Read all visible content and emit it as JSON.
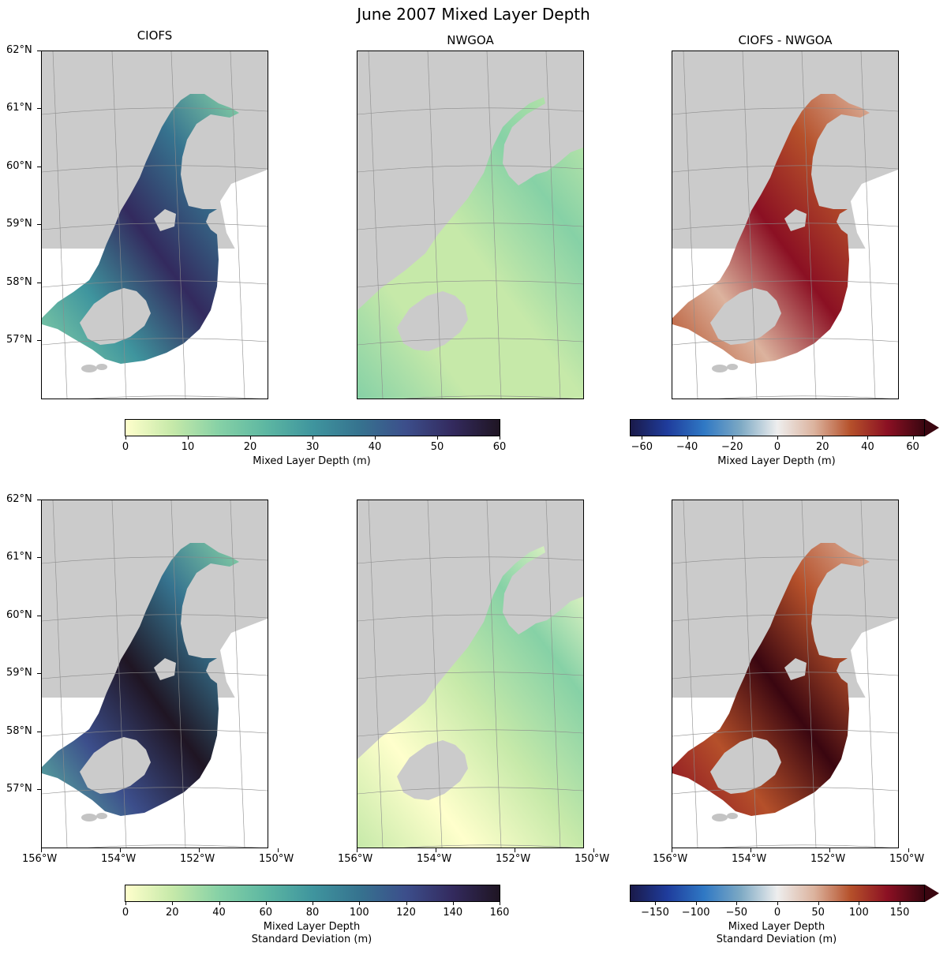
{
  "title": "June 2007 Mixed Layer Depth",
  "column_titles": [
    "CIOFS",
    "NWGOA",
    "CIOFS - NWGOA"
  ],
  "lat_labels": [
    "62°N",
    "61°N",
    "60°N",
    "59°N",
    "58°N",
    "57°N"
  ],
  "lon_labels": [
    "156°W",
    "154°W",
    "152°W",
    "150°W"
  ],
  "colormaps": {
    "sequential": [
      "#ffffcc",
      "#c6e9a9",
      "#86d1a6",
      "#5db7a2",
      "#3f959e",
      "#36738f",
      "#3c4e8b",
      "#332a5e",
      "#1f1523"
    ],
    "diverging": [
      "#1a1a4a",
      "#1f3c9c",
      "#2f78c4",
      "#7da9c4",
      "#eeeeee",
      "#dcb39e",
      "#b5502a",
      "#8b1023",
      "#3a0610"
    ]
  },
  "chart_data": [
    {
      "type": "heatmap",
      "row": "mean",
      "colorbars": [
        {
          "label": "Mixed Layer Depth (m)",
          "colormap": "sequential",
          "range": [
            0,
            60
          ],
          "ticks": [
            "0",
            "10",
            "20",
            "30",
            "40",
            "50",
            "60"
          ],
          "extend": "neither"
        },
        {
          "label": "Mixed Layer Depth (m)",
          "colormap": "diverging",
          "range": [
            -65,
            65
          ],
          "ticks": [
            "−60",
            "−40",
            "−20",
            "0",
            "20",
            "40",
            "60"
          ],
          "tick_values": [
            -60,
            -40,
            -20,
            0,
            20,
            40,
            60
          ],
          "extend": "max"
        }
      ]
    },
    {
      "type": "heatmap",
      "row": "standard deviation",
      "colorbars": [
        {
          "label": "Mixed Layer Depth\nStandard Deviation (m)",
          "colormap": "sequential",
          "range": [
            0,
            160
          ],
          "ticks": [
            "0",
            "20",
            "40",
            "60",
            "80",
            "100",
            "120",
            "140",
            "160"
          ],
          "extend": "neither"
        },
        {
          "label": "Mixed Layer Depth\nStandard Deviation (m)",
          "colormap": "diverging",
          "range": [
            -180,
            180
          ],
          "ticks": [
            "−150",
            "−100",
            "−50",
            "0",
            "50",
            "100",
            "150"
          ],
          "tick_values": [
            -150,
            -100,
            -50,
            0,
            50,
            100,
            150
          ],
          "extend": "max"
        }
      ]
    }
  ]
}
